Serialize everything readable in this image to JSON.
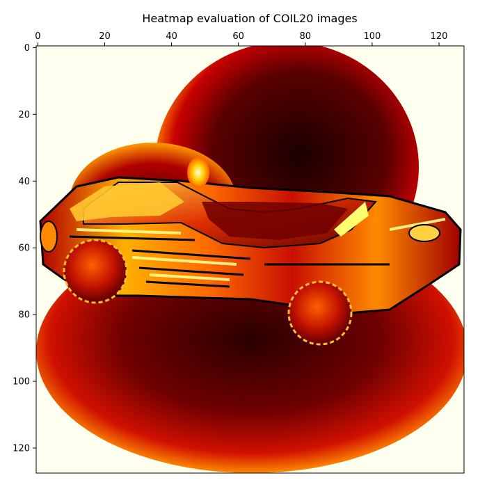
{
  "chart_data": {
    "type": "heatmap",
    "title": "Heatmap evaluation of COIL20 images",
    "xlabel": "",
    "ylabel": "",
    "colormap": "hot",
    "x_axis_position": "top",
    "grid": false,
    "image_shape": [
      128,
      128
    ],
    "xlim": [
      -0.5,
      127.5
    ],
    "ylim": [
      127.5,
      -0.5
    ],
    "x_ticks": [
      0,
      20,
      40,
      60,
      80,
      100,
      120
    ],
    "y_ticks": [
      0,
      20,
      40,
      60,
      80,
      100,
      120
    ],
    "x_tick_labels": [
      "0",
      "20",
      "40",
      "60",
      "80",
      "100",
      "120"
    ],
    "y_tick_labels": [
      "0",
      "20",
      "40",
      "60",
      "80",
      "100",
      "120"
    ],
    "colors": {
      "background": "#fffff0",
      "low": "#000000",
      "mid": "#cc0000",
      "high": "#ffff00",
      "max": "#ffffff"
    }
  }
}
